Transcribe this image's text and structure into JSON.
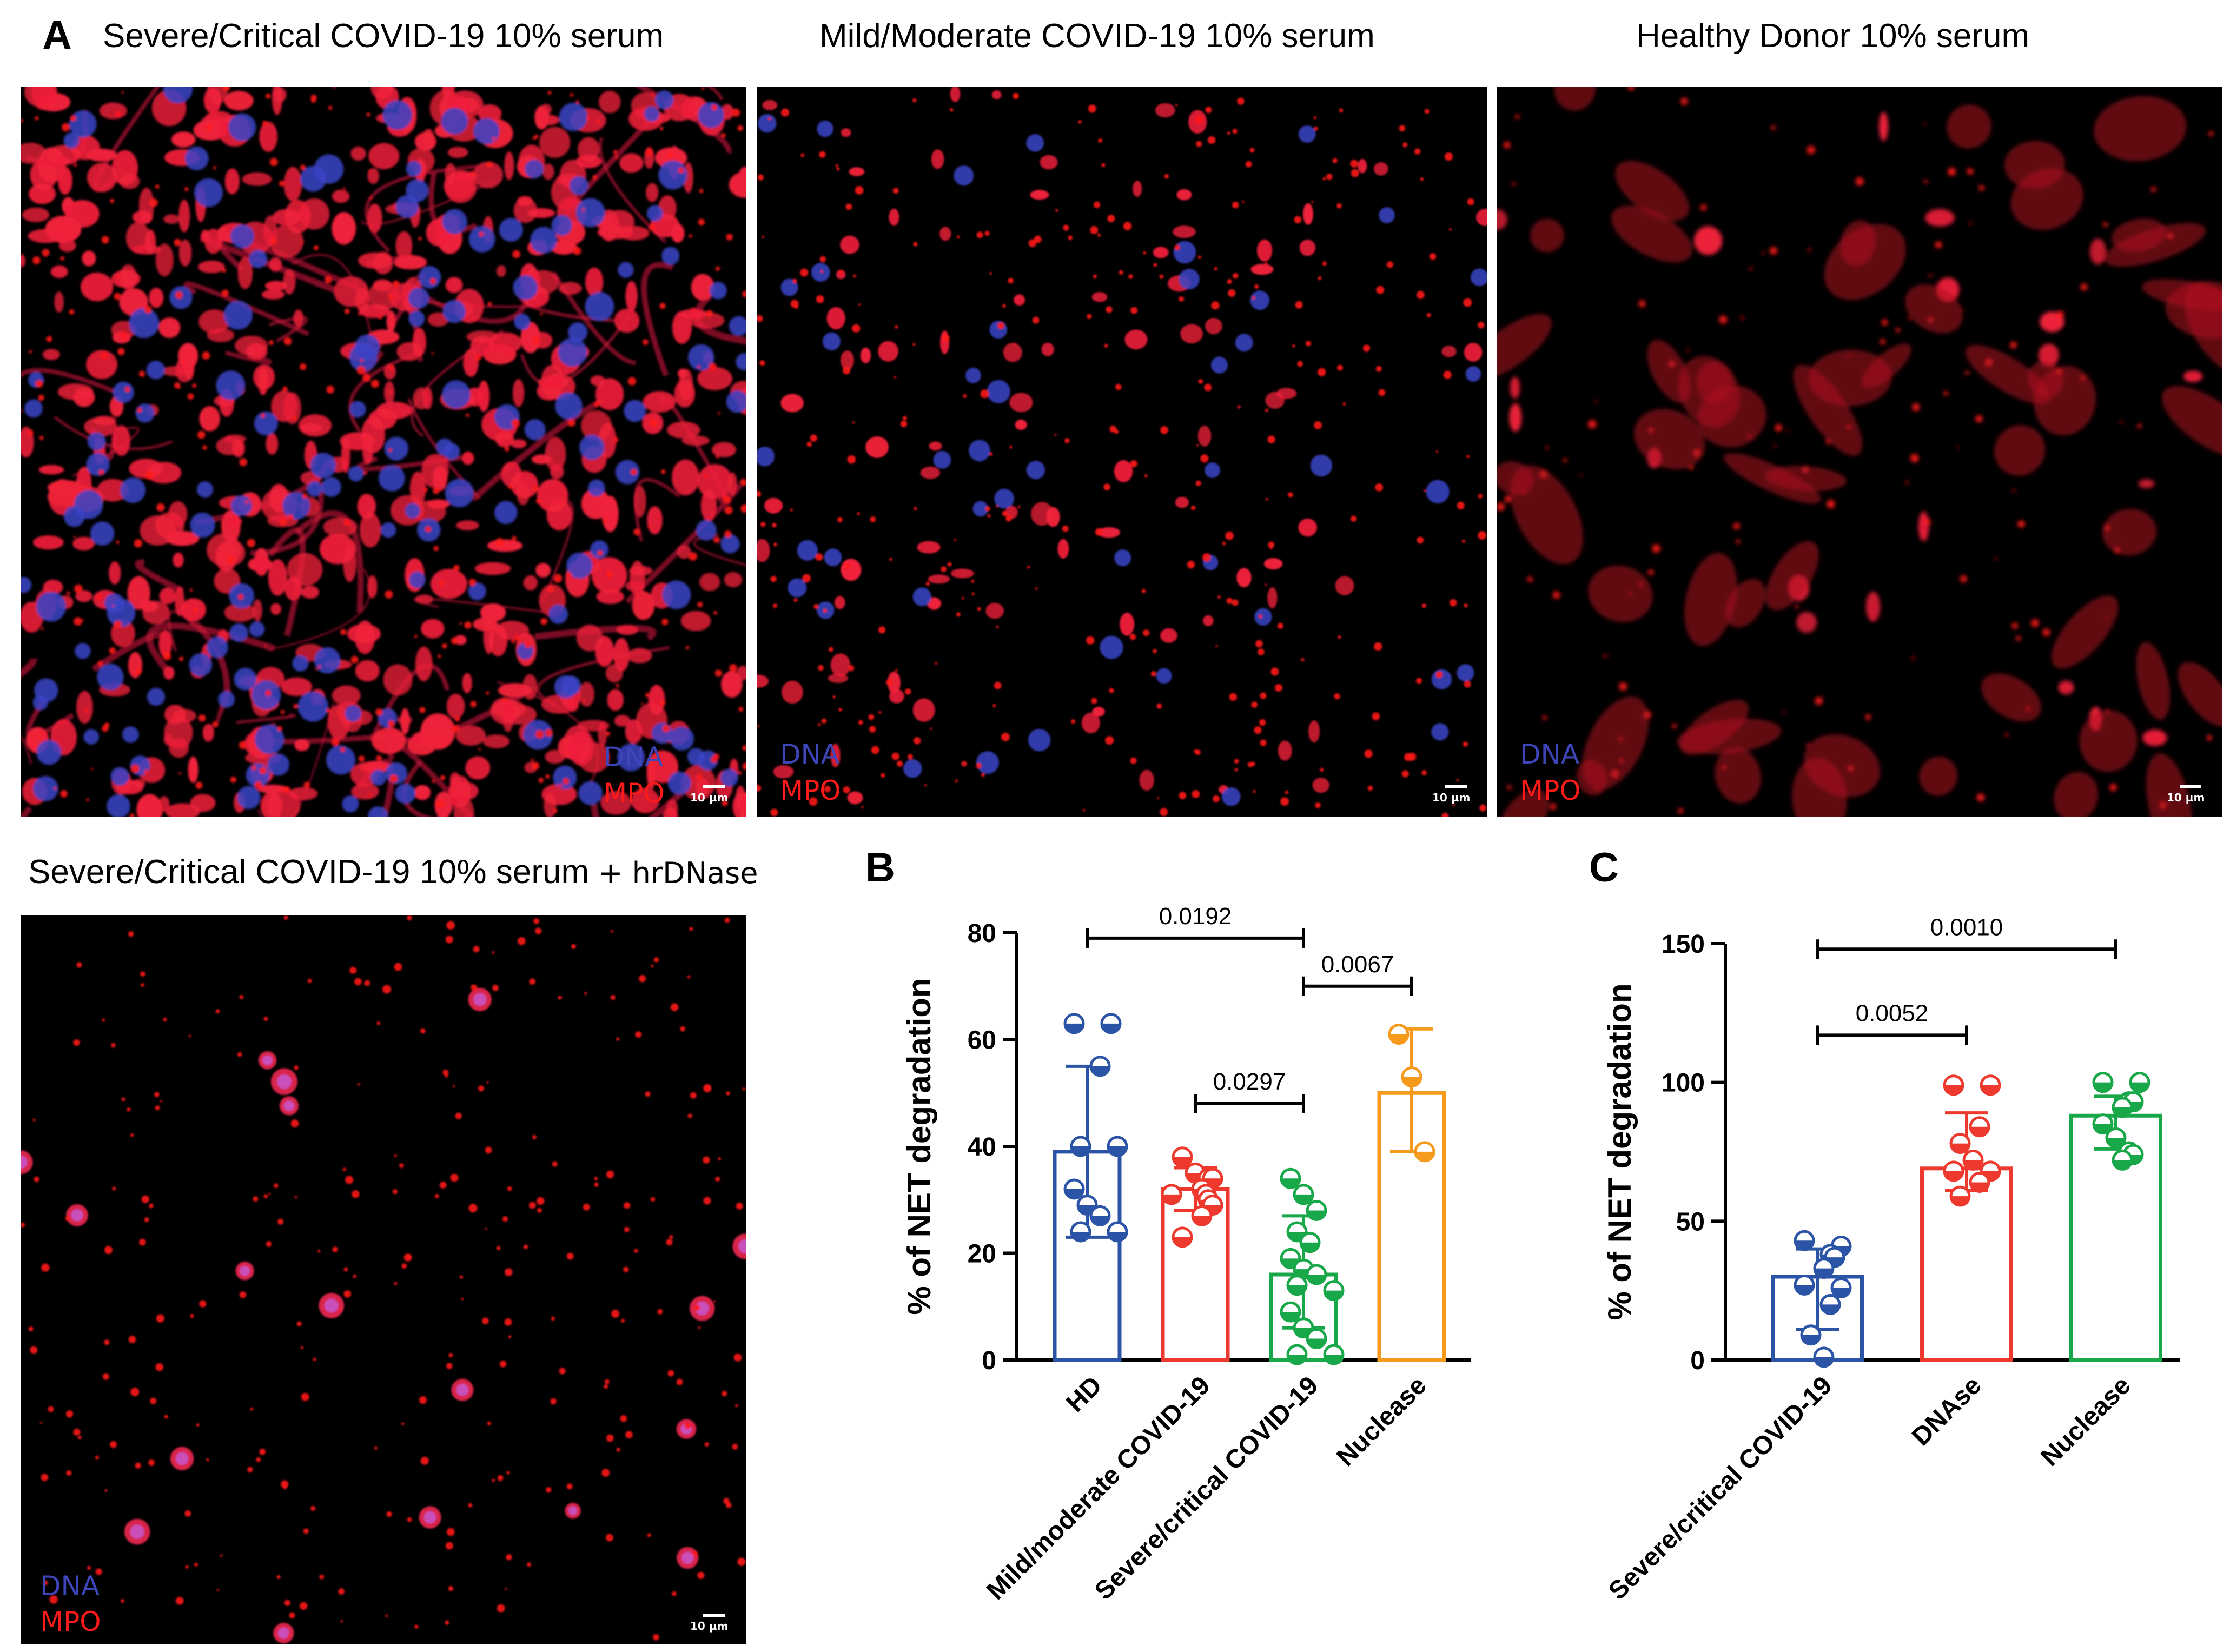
{
  "panel_a": {
    "label": "A",
    "images": [
      {
        "title": "Severe/Critical COVID-19 10% serum",
        "legend_dna": "DNA",
        "legend_mpo": "MPO",
        "scale": "10 µm"
      },
      {
        "title": "Mild/Moderate COVID-19 10% serum",
        "legend_dna": "DNA",
        "legend_mpo": "MPO",
        "scale": "10 µm"
      },
      {
        "title": "Healthy Donor 10% serum",
        "legend_dna": "DNA",
        "legend_mpo": "MPO",
        "scale": "10 µm"
      },
      {
        "title_main": "Severe/Critical COVID-19 10% serum",
        "title_suffix": " + hrDNase",
        "legend_dna": "DNA",
        "legend_mpo": "MPO",
        "scale": "10 µm"
      }
    ]
  },
  "colors": {
    "blue": "#2b54a6",
    "red": "#ee3a2e",
    "green": "#18a84a",
    "orange": "#f59a1a",
    "dna": "#3e45b8",
    "mpo": "#ff1a1a"
  },
  "chart_data": [
    {
      "panel": "B",
      "type": "bar",
      "title": "",
      "xlabel": "",
      "ylabel": "% of NET degradation",
      "ylim": [
        0,
        80
      ],
      "yticks": [
        "0",
        "20",
        "40",
        "60",
        "80"
      ],
      "categories": [
        "HD",
        "Mild/moderate COVID-19",
        "Severe/critical COVID-19",
        "Nuclease"
      ],
      "series": [
        {
          "name": "HD",
          "color": "#2b54a6",
          "mean": 39,
          "sd_low": 23,
          "sd_high": 55,
          "points": [
            63,
            63,
            55,
            40,
            40,
            32,
            29,
            27,
            24,
            24
          ]
        },
        {
          "name": "Mild/moderate COVID-19",
          "color": "#ee3a2e",
          "mean": 32,
          "sd_low": 28,
          "sd_high": 36,
          "points": [
            38,
            35,
            34,
            34,
            32,
            31,
            31,
            30,
            29,
            27,
            23
          ]
        },
        {
          "name": "Severe/critical COVID-19",
          "color": "#18a84a",
          "mean": 16,
          "sd_low": 6,
          "sd_high": 27,
          "points": [
            34,
            31,
            28,
            24,
            22,
            19,
            17,
            16,
            14,
            13,
            9,
            6,
            4,
            1,
            1
          ]
        },
        {
          "name": "Nuclease",
          "color": "#f59a1a",
          "mean": 50,
          "sd_low": 39,
          "sd_high": 62,
          "points": [
            61,
            53,
            39
          ]
        }
      ],
      "annotations": [
        {
          "text": "0.0192",
          "from": 0,
          "to": 2,
          "y": 79
        },
        {
          "text": "0.0067",
          "from": 2,
          "to": 3,
          "y": 70
        },
        {
          "text": "0.0297",
          "from": 1,
          "to": 2,
          "y": 48
        }
      ]
    },
    {
      "panel": "C",
      "type": "bar",
      "title": "",
      "xlabel": "",
      "ylabel": "% of NET degradation",
      "ylim": [
        0,
        150
      ],
      "yticks": [
        "0",
        "50",
        "100",
        "150"
      ],
      "categories": [
        "Severe/critical COVID-19",
        "DNAse",
        "Nuclease"
      ],
      "series": [
        {
          "name": "Severe/critical COVID-19",
          "color": "#2b54a6",
          "mean": 30,
          "sd_low": 11,
          "sd_high": 40,
          "points": [
            43,
            41,
            38,
            37,
            33,
            27,
            26,
            20,
            9,
            1
          ]
        },
        {
          "name": "DNAse",
          "color": "#ee3a2e",
          "mean": 69,
          "sd_low": 61,
          "sd_high": 89,
          "points": [
            99,
            99,
            84,
            78,
            72,
            68,
            68,
            64,
            59
          ]
        },
        {
          "name": "Nuclease",
          "color": "#18a84a",
          "mean": 88,
          "sd_low": 76,
          "sd_high": 95,
          "points": [
            100,
            100,
            93,
            93,
            91,
            85,
            80,
            75,
            74,
            72
          ]
        }
      ],
      "annotations": [
        {
          "text": "0.0010",
          "from": 0,
          "to": 2,
          "y": 148
        },
        {
          "text": "0.0052",
          "from": 0,
          "to": 1,
          "y": 117
        }
      ]
    }
  ]
}
